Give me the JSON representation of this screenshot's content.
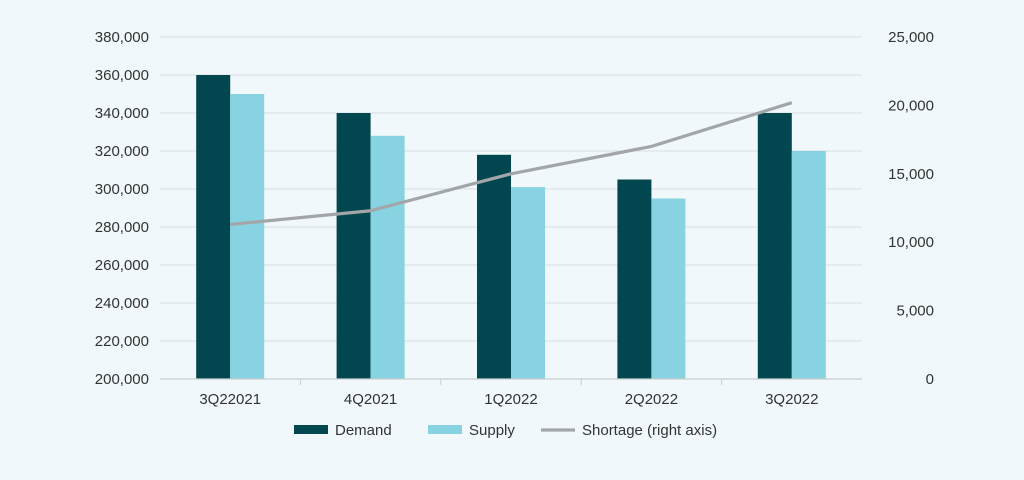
{
  "chart_data": {
    "type": "bar",
    "title": "",
    "xlabel": "",
    "ylabel": "",
    "y2label": "",
    "categories": [
      "3Q22021",
      "4Q2021",
      "1Q2022",
      "2Q2022",
      "3Q2022"
    ],
    "series": [
      {
        "name": "Demand",
        "type": "bar",
        "axis": "left",
        "color": "#02474f",
        "values": [
          360000,
          340000,
          318000,
          305000,
          340000
        ]
      },
      {
        "name": "Supply",
        "type": "bar",
        "axis": "left",
        "color": "#88d3e1",
        "values": [
          350000,
          328000,
          301000,
          295000,
          320000
        ]
      },
      {
        "name": "Shortage (right axis)",
        "type": "line",
        "axis": "right",
        "color": "#a3a6a8",
        "values": [
          11300,
          12300,
          15000,
          17000,
          20200
        ]
      }
    ],
    "ylim": [
      200000,
      380000
    ],
    "y2lim": [
      0,
      25000
    ],
    "yticks": [
      "200,000",
      "220,000",
      "240,000",
      "260,000",
      "280,000",
      "300,000",
      "320,000",
      "340,000",
      "360,000",
      "380,000"
    ],
    "y2ticks": [
      "0",
      "5,000",
      "10,000",
      "15,000",
      "20,000",
      "25,000"
    ],
    "grid": true,
    "legend": {
      "position": "bottom",
      "items": [
        "Demand",
        "Supply",
        "Shortage (right axis)"
      ]
    }
  }
}
